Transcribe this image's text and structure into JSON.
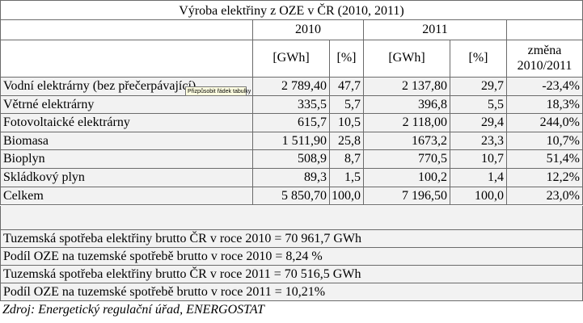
{
  "title": "Výroba elektřiny z OZE v ČR  (2010, 2011)",
  "years": [
    "2010",
    "2011"
  ],
  "units": [
    "[GWh]",
    "[%]",
    "[GWh]",
    "[%]"
  ],
  "change_header": [
    "změna",
    "2010/2011"
  ],
  "rows": [
    {
      "name": "Vodní elektrárny (bez přečerpávající)",
      "gwh2010": "2 789,40",
      "pct2010": "47,7",
      "gwh2011": "2 137,80",
      "pct2011": "29,7",
      "change": "-23,4%"
    },
    {
      "name": "Větrné elektrárny",
      "gwh2010": "335,5",
      "pct2010": "5,7",
      "gwh2011": "396,8",
      "pct2011": "5,5",
      "change": "18,3%"
    },
    {
      "name": "Fotovoltaické elektrárny",
      "gwh2010": "615,7",
      "pct2010": "10,5",
      "gwh2011": "2 118,00",
      "pct2011": "29,4",
      "change": "244,0%"
    },
    {
      "name": "Biomasa",
      "gwh2010": "1 511,90",
      "pct2010": "25,8",
      "gwh2011": "1673,2",
      "pct2011": "23,3",
      "change": "10,7%"
    },
    {
      "name": "Bioplyn",
      "gwh2010": "508,9",
      "pct2010": "8,7",
      "gwh2011": "770,5",
      "pct2011": "10,7",
      "change": "51,4%"
    },
    {
      "name": "Skládkový plyn",
      "gwh2010": "89,3",
      "pct2010": "1,5",
      "gwh2011": "100,2",
      "pct2011": "1,4",
      "change": "12,2%"
    },
    {
      "name": "Celkem",
      "gwh2010": "5 850,70",
      "pct2010": "100,0",
      "gwh2011": "7 196,50",
      "pct2011": "100,0",
      "change": "23,0%"
    }
  ],
  "notes": [
    "Tuzemská spotřeba elektřiny brutto ČR v roce 2010 = 70 961,7 GWh",
    "Podíl OZE na tuzemské spotřebě brutto v roce 2010 = 8,24 %",
    "Tuzemská spotřeba elektřiny brutto ČR v roce 2011 = 70 516,5 GWh",
    "Podíl OZE na tuzemské spotřebě brutto v roce 2011 = 10,21%"
  ],
  "tooltip": "Přizpůsobit řádek tabulky",
  "source": "Zdroj: Energetický regulační úřad, ENERGOSTAT"
}
